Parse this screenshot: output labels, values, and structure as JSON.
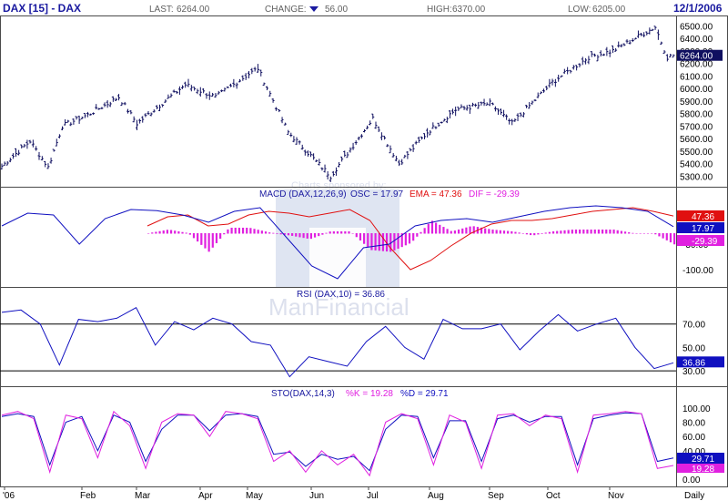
{
  "header": {
    "title": "DAX [15] - DAX",
    "last_label": "LAST:",
    "last_value": "6264.00",
    "change_label": "CHANGE:",
    "change_value": "56.00",
    "high_label": "HIGH:",
    "high_value": "6370.00",
    "low_label": "LOW:",
    "low_value": "6205.00",
    "date": "12/1/2006"
  },
  "watermark": {
    "line1": "Charts sponsored by:",
    "line2": "ManFinancial"
  },
  "colors": {
    "frame": "#4a4a4a",
    "price": "#101060",
    "macd_line": "#1010c0",
    "ema_line": "#e01010",
    "histogram": "#e020e0",
    "rsi_line": "#1010c0",
    "k_line": "#e020e0",
    "d_line": "#1010c0",
    "title_blue": "#1a1aa0",
    "watermark": "#c0c8e0"
  },
  "chart_data": [
    {
      "type": "ohlc",
      "panel": "price",
      "title": "DAX [15] - DAX",
      "x_ticks": [
        "'06",
        "Feb",
        "Mar",
        "Apr",
        "May",
        "Jun",
        "Jul",
        "Aug",
        "Sep",
        "Oct",
        "Nov",
        "Daily"
      ],
      "y_ticks": [
        "6500.00",
        "6400.00",
        "6300.00",
        "6200.00",
        "6100.00",
        "6000.00",
        "5900.00",
        "5800.00",
        "5700.00",
        "5600.00",
        "5500.00",
        "5400.00",
        "5300.00"
      ],
      "ylim": [
        5230,
        6560
      ],
      "last_value_label": "6264.00",
      "monthly_closes": [
        {
          "date": "2006-01-02",
          "close": 5380
        },
        {
          "date": "2006-01-16",
          "close": 5580
        },
        {
          "date": "2006-01-25",
          "close": 5370
        },
        {
          "date": "2006-02-01",
          "close": 5700
        },
        {
          "date": "2006-02-15",
          "close": 5800
        },
        {
          "date": "2006-03-01",
          "close": 5930
        },
        {
          "date": "2006-03-10",
          "close": 5720
        },
        {
          "date": "2006-04-03",
          "close": 6030
        },
        {
          "date": "2006-04-18",
          "close": 5930
        },
        {
          "date": "2006-05-03",
          "close": 6100
        },
        {
          "date": "2006-05-09",
          "close": 6160
        },
        {
          "date": "2006-05-24",
          "close": 5650
        },
        {
          "date": "2006-06-14",
          "close": 5300
        },
        {
          "date": "2006-07-05",
          "close": 5760
        },
        {
          "date": "2006-07-18",
          "close": 5400
        },
        {
          "date": "2006-08-01",
          "close": 5650
        },
        {
          "date": "2006-08-15",
          "close": 5830
        },
        {
          "date": "2006-09-01",
          "close": 5880
        },
        {
          "date": "2006-09-12",
          "close": 5720
        },
        {
          "date": "2006-10-02",
          "close": 6050
        },
        {
          "date": "2006-10-20",
          "close": 6250
        },
        {
          "date": "2006-11-01",
          "close": 6300
        },
        {
          "date": "2006-11-22",
          "close": 6490
        },
        {
          "date": "2006-11-28",
          "close": 6250
        },
        {
          "date": "2006-12-01",
          "close": 6264
        }
      ]
    },
    {
      "type": "line",
      "panel": "macd",
      "title": "MACD (DAX,12,26,9)",
      "legend": [
        {
          "name": "OSC",
          "value": "17.97"
        },
        {
          "name": "EMA",
          "value": "47.36"
        },
        {
          "name": "DIF",
          "value": "-29.39"
        }
      ],
      "y_ticks": [
        "-30.00",
        "-100.00"
      ],
      "ylim": [
        -140,
        90
      ],
      "labels_right": [
        "47.36",
        "17.97",
        "-29.39"
      ],
      "series": [
        {
          "name": "OSC",
          "values": [
            20,
            55,
            50,
            -30,
            40,
            65,
            62,
            50,
            30,
            60,
            70,
            -10,
            -90,
            -125,
            -40,
            -30,
            20,
            35,
            40,
            30,
            45,
            60,
            70,
            75,
            70,
            60,
            17.97
          ]
        },
        {
          "name": "EMA",
          "values": [
            20,
            45,
            50,
            20,
            25,
            50,
            60,
            55,
            45,
            55,
            65,
            35,
            -40,
            -100,
            -75,
            -35,
            0,
            25,
            35,
            35,
            40,
            50,
            60,
            65,
            70,
            60,
            47.36
          ]
        },
        {
          "name": "DIF",
          "values": [
            0,
            10,
            0,
            -50,
            15,
            15,
            2,
            -5,
            -15,
            5,
            5,
            -45,
            -50,
            -25,
            35,
            5,
            20,
            10,
            5,
            -5,
            5,
            10,
            10,
            10,
            0,
            0,
            -29.39
          ]
        }
      ]
    },
    {
      "type": "line",
      "panel": "rsi",
      "title": "RSI (DAX,10) = 36.86",
      "y_ticks": [
        "70.00",
        "50.00",
        "30.00"
      ],
      "reference_lines": [
        70,
        30
      ],
      "ylim": [
        20,
        90
      ],
      "last_value_label": "36.86",
      "series": [
        {
          "name": "RSI",
          "values": [
            80,
            82,
            70,
            35,
            74,
            72,
            75,
            84,
            52,
            72,
            65,
            75,
            70,
            55,
            52,
            25,
            42,
            38,
            34,
            55,
            68,
            50,
            40,
            74,
            66,
            66,
            70,
            48,
            64,
            78,
            64,
            70,
            75,
            50,
            32,
            36.86
          ]
        }
      ]
    },
    {
      "type": "line",
      "panel": "stochastic",
      "title": "STO(DAX,14,3)",
      "legend": [
        {
          "name": "%K",
          "value": "19.28"
        },
        {
          "name": "%D",
          "value": "29.71"
        }
      ],
      "y_ticks": [
        "100.00",
        "80.00",
        "60.00",
        "40.00",
        "20.00",
        "0.00"
      ],
      "ylim": [
        -5,
        110
      ],
      "labels_right": [
        "29.71",
        "19.28"
      ],
      "series": [
        {
          "name": "%K",
          "values": [
            90,
            95,
            85,
            10,
            90,
            85,
            30,
            95,
            75,
            15,
            80,
            92,
            90,
            60,
            95,
            92,
            85,
            25,
            40,
            10,
            40,
            20,
            35,
            5,
            80,
            92,
            85,
            20,
            90,
            80,
            15,
            90,
            92,
            75,
            90,
            85,
            10,
            90,
            92,
            95,
            92,
            15,
            19.28
          ]
        },
        {
          "name": "%D",
          "values": [
            88,
            92,
            88,
            20,
            80,
            88,
            40,
            90,
            80,
            25,
            70,
            90,
            90,
            68,
            90,
            92,
            88,
            35,
            38,
            18,
            35,
            28,
            32,
            12,
            70,
            90,
            88,
            30,
            82,
            82,
            25,
            85,
            90,
            80,
            88,
            88,
            20,
            85,
            90,
            93,
            92,
            25,
            29.71
          ]
        }
      ]
    }
  ]
}
